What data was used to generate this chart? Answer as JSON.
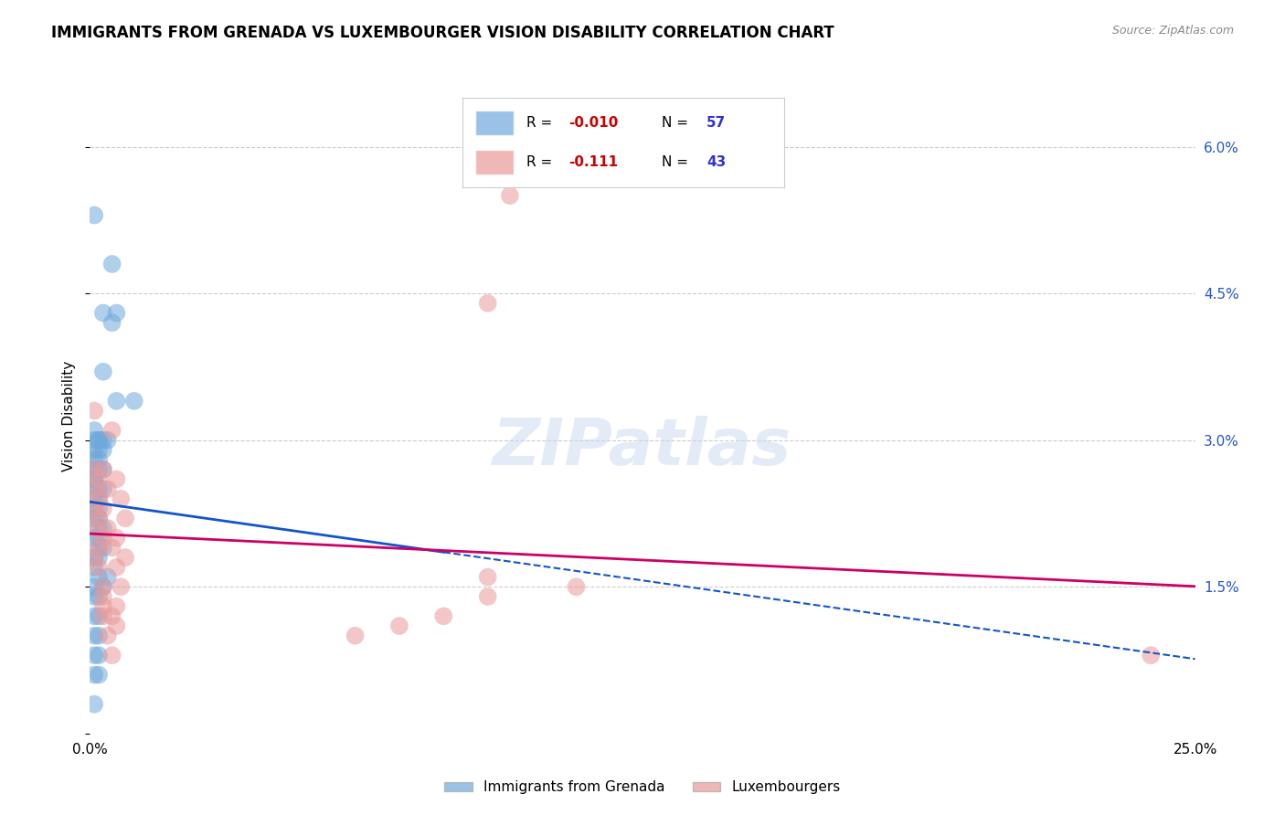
{
  "title": "IMMIGRANTS FROM GRENADA VS LUXEMBOURGER VISION DISABILITY CORRELATION CHART",
  "source": "Source: ZipAtlas.com",
  "ylabel": "Vision Disability",
  "xlim": [
    0.0,
    0.25
  ],
  "ylim": [
    0.0,
    0.065
  ],
  "blue_color": "#6fa8dc",
  "pink_color": "#ea9999",
  "blue_line_color": "#1155cc",
  "pink_line_color": "#cc0066",
  "blue_scatter": [
    [
      0.001,
      0.053
    ],
    [
      0.005,
      0.048
    ],
    [
      0.003,
      0.043
    ],
    [
      0.006,
      0.043
    ],
    [
      0.005,
      0.042
    ],
    [
      0.003,
      0.037
    ],
    [
      0.006,
      0.034
    ],
    [
      0.01,
      0.034
    ],
    [
      0.001,
      0.031
    ],
    [
      0.001,
      0.03
    ],
    [
      0.002,
      0.03
    ],
    [
      0.002,
      0.03
    ],
    [
      0.003,
      0.03
    ],
    [
      0.004,
      0.03
    ],
    [
      0.001,
      0.029
    ],
    [
      0.002,
      0.029
    ],
    [
      0.003,
      0.029
    ],
    [
      0.001,
      0.028
    ],
    [
      0.002,
      0.028
    ],
    [
      0.001,
      0.027
    ],
    [
      0.002,
      0.027
    ],
    [
      0.003,
      0.027
    ],
    [
      0.001,
      0.026
    ],
    [
      0.001,
      0.026
    ],
    [
      0.001,
      0.025
    ],
    [
      0.002,
      0.025
    ],
    [
      0.003,
      0.025
    ],
    [
      0.001,
      0.024
    ],
    [
      0.002,
      0.024
    ],
    [
      0.001,
      0.023
    ],
    [
      0.002,
      0.023
    ],
    [
      0.001,
      0.022
    ],
    [
      0.002,
      0.022
    ],
    [
      0.002,
      0.021
    ],
    [
      0.003,
      0.021
    ],
    [
      0.001,
      0.02
    ],
    [
      0.002,
      0.02
    ],
    [
      0.002,
      0.019
    ],
    [
      0.003,
      0.019
    ],
    [
      0.001,
      0.018
    ],
    [
      0.002,
      0.018
    ],
    [
      0.001,
      0.017
    ],
    [
      0.002,
      0.016
    ],
    [
      0.004,
      0.016
    ],
    [
      0.001,
      0.015
    ],
    [
      0.003,
      0.015
    ],
    [
      0.001,
      0.014
    ],
    [
      0.002,
      0.014
    ],
    [
      0.001,
      0.012
    ],
    [
      0.002,
      0.012
    ],
    [
      0.001,
      0.01
    ],
    [
      0.002,
      0.01
    ],
    [
      0.001,
      0.008
    ],
    [
      0.002,
      0.008
    ],
    [
      0.001,
      0.006
    ],
    [
      0.002,
      0.006
    ],
    [
      0.001,
      0.003
    ]
  ],
  "pink_scatter": [
    [
      0.095,
      0.055
    ],
    [
      0.09,
      0.044
    ],
    [
      0.001,
      0.033
    ],
    [
      0.005,
      0.031
    ],
    [
      0.001,
      0.027
    ],
    [
      0.003,
      0.027
    ],
    [
      0.002,
      0.026
    ],
    [
      0.006,
      0.026
    ],
    [
      0.001,
      0.025
    ],
    [
      0.004,
      0.025
    ],
    [
      0.002,
      0.024
    ],
    [
      0.007,
      0.024
    ],
    [
      0.001,
      0.023
    ],
    [
      0.003,
      0.023
    ],
    [
      0.002,
      0.022
    ],
    [
      0.008,
      0.022
    ],
    [
      0.001,
      0.021
    ],
    [
      0.004,
      0.021
    ],
    [
      0.003,
      0.02
    ],
    [
      0.006,
      0.02
    ],
    [
      0.002,
      0.019
    ],
    [
      0.005,
      0.019
    ],
    [
      0.001,
      0.018
    ],
    [
      0.008,
      0.018
    ],
    [
      0.002,
      0.017
    ],
    [
      0.006,
      0.017
    ],
    [
      0.09,
      0.016
    ],
    [
      0.003,
      0.015
    ],
    [
      0.007,
      0.015
    ],
    [
      0.11,
      0.015
    ],
    [
      0.003,
      0.014
    ],
    [
      0.09,
      0.014
    ],
    [
      0.003,
      0.013
    ],
    [
      0.006,
      0.013
    ],
    [
      0.003,
      0.012
    ],
    [
      0.005,
      0.012
    ],
    [
      0.08,
      0.012
    ],
    [
      0.006,
      0.011
    ],
    [
      0.07,
      0.011
    ],
    [
      0.004,
      0.01
    ],
    [
      0.06,
      0.01
    ],
    [
      0.005,
      0.008
    ],
    [
      0.24,
      0.008
    ]
  ],
  "watermark": "ZIPatlas",
  "background_color": "#ffffff"
}
